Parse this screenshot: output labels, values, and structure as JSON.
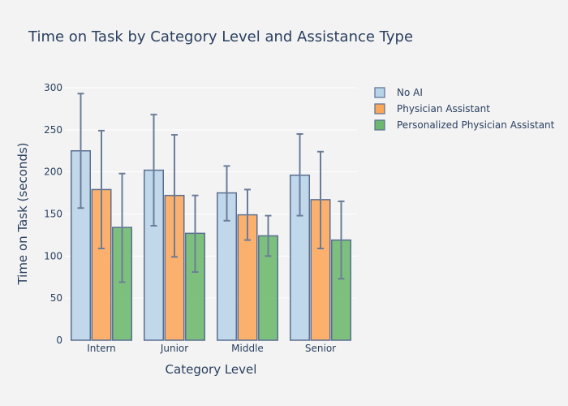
{
  "chart_data": {
    "type": "bar",
    "title": "Time on Task by Category Level and Assistance Type",
    "xlabel": "Category Level",
    "ylabel": "Time on Task (seconds)",
    "categories": [
      "Intern",
      "Junior",
      "Middle",
      "Senior"
    ],
    "ylim": [
      0,
      300
    ],
    "yticks": [
      0,
      50,
      100,
      150,
      200,
      250,
      300
    ],
    "grid": true,
    "legend_position": "top-right",
    "series": [
      {
        "name": "No AI",
        "color": "#b8d4e8",
        "values": [
          225,
          202,
          175,
          196
        ],
        "error_low": [
          157,
          136,
          142,
          148
        ],
        "error_high": [
          293,
          268,
          207,
          245
        ]
      },
      {
        "name": "Physician Assistant",
        "color": "#fca65a",
        "values": [
          179,
          172,
          149,
          167
        ],
        "error_low": [
          109,
          99,
          119,
          109
        ],
        "error_high": [
          249,
          244,
          179,
          224
        ]
      },
      {
        "name": "Personalized Physician Assistant",
        "color": "#6cb86c",
        "values": [
          134,
          127,
          124,
          119
        ],
        "error_low": [
          69,
          81,
          100,
          73
        ],
        "error_high": [
          198,
          172,
          148,
          165
        ]
      }
    ]
  }
}
